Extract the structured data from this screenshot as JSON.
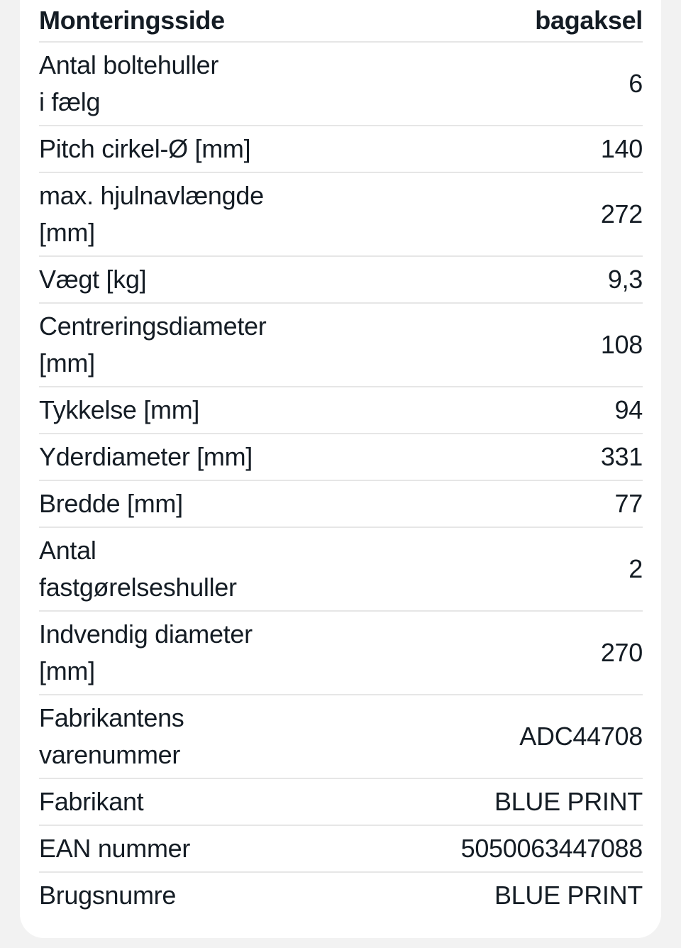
{
  "header": {
    "label": "Monteringsside",
    "value": "bagaksel"
  },
  "rows": [
    {
      "label": "Antal boltehuller\ni fælg",
      "value": "6"
    },
    {
      "label": "Pitch cirkel-Ø [mm]",
      "value": "140"
    },
    {
      "label": "max. hjulnavlængde\n[mm]",
      "value": "272"
    },
    {
      "label": "Vægt [kg]",
      "value": "9,3"
    },
    {
      "label": "Centreringsdiameter\n[mm]",
      "value": "108"
    },
    {
      "label": "Tykkelse [mm]",
      "value": "94"
    },
    {
      "label": "Yderdiameter [mm]",
      "value": "331"
    },
    {
      "label": "Bredde [mm]",
      "value": "77"
    },
    {
      "label": "Antal\nfastgørelseshuller",
      "value": "2"
    },
    {
      "label": "Indvendig diameter\n[mm]",
      "value": "270"
    },
    {
      "label": "Fabrikantens\nvarenummer",
      "value": "ADC44708"
    },
    {
      "label": "Fabrikant",
      "value": "BLUE PRINT"
    },
    {
      "label": "EAN nummer",
      "value": "5050063447088"
    },
    {
      "label": "Brugsnumre",
      "value": "BLUE PRINT"
    }
  ]
}
